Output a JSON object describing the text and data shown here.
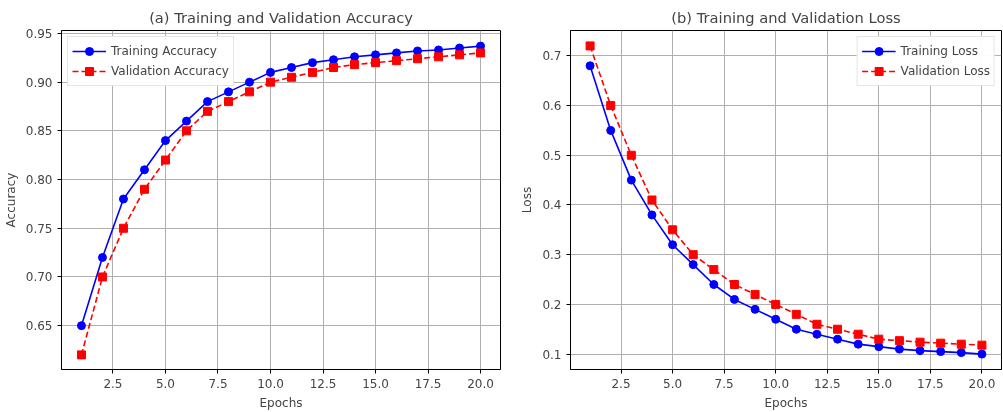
{
  "chart_data": [
    {
      "type": "line",
      "title": "(a) Training and Validation Accuracy",
      "xlabel": "Epochs",
      "ylabel": "Accuracy",
      "x": [
        1,
        2,
        3,
        4,
        5,
        6,
        7,
        8,
        9,
        10,
        11,
        12,
        13,
        14,
        15,
        16,
        17,
        18,
        19,
        20
      ],
      "series": [
        {
          "name": "Training Accuracy",
          "color": "#0000ff",
          "marker": "circle",
          "line_style": "solid",
          "values": [
            0.65,
            0.72,
            0.78,
            0.81,
            0.84,
            0.86,
            0.88,
            0.89,
            0.9,
            0.91,
            0.915,
            0.92,
            0.923,
            0.926,
            0.928,
            0.93,
            0.932,
            0.933,
            0.935,
            0.937
          ]
        },
        {
          "name": "Validation Accuracy",
          "color": "#ff0000",
          "marker": "square",
          "line_style": "dashed",
          "values": [
            0.62,
            0.7,
            0.75,
            0.79,
            0.82,
            0.85,
            0.87,
            0.88,
            0.89,
            0.9,
            0.905,
            0.91,
            0.915,
            0.918,
            0.92,
            0.922,
            0.924,
            0.926,
            0.928,
            0.93
          ]
        }
      ],
      "xlim": [
        0.05,
        20.95
      ],
      "ylim": [
        0.605,
        0.953
      ],
      "xticks": [
        2.5,
        {
          "value": 5,
          "label": "5.0"
        },
        7.5,
        {
          "value": 10,
          "label": "10.0"
        },
        12.5,
        {
          "value": 15,
          "label": "15.0"
        },
        17.5,
        {
          "value": 20,
          "label": "20.0"
        }
      ],
      "yticks": [
        0.65,
        {
          "value": 0.7,
          "label": "0.70"
        },
        0.75,
        {
          "value": 0.8,
          "label": "0.80"
        },
        0.85,
        {
          "value": 0.9,
          "label": "0.90"
        },
        0.95
      ],
      "grid": true,
      "legend": "top left"
    },
    {
      "type": "line",
      "title": "(b) Training and Validation Loss",
      "xlabel": "Epochs",
      "ylabel": "Loss",
      "x": [
        1,
        2,
        3,
        4,
        5,
        6,
        7,
        8,
        9,
        10,
        11,
        12,
        13,
        14,
        15,
        16,
        17,
        18,
        19,
        20
      ],
      "series": [
        {
          "name": "Training Loss",
          "color": "#0000ff",
          "marker": "circle",
          "line_style": "solid",
          "values": [
            0.68,
            0.55,
            0.45,
            0.38,
            0.32,
            0.28,
            0.24,
            0.21,
            0.19,
            0.17,
            0.15,
            0.14,
            0.13,
            0.12,
            0.115,
            0.11,
            0.107,
            0.105,
            0.103,
            0.1
          ]
        },
        {
          "name": "Validation Loss",
          "color": "#ff0000",
          "marker": "square",
          "line_style": "dashed",
          "values": [
            0.72,
            0.6,
            0.5,
            0.41,
            0.35,
            0.3,
            0.27,
            0.24,
            0.22,
            0.2,
            0.18,
            0.16,
            0.15,
            0.14,
            0.13,
            0.127,
            0.124,
            0.122,
            0.12,
            0.118
          ]
        }
      ],
      "xlim": [
        0.05,
        20.95
      ],
      "ylim": [
        0.069,
        0.751
      ],
      "xticks": [
        2.5,
        {
          "value": 5,
          "label": "5.0"
        },
        7.5,
        {
          "value": 10,
          "label": "10.0"
        },
        12.5,
        {
          "value": 15,
          "label": "15.0"
        },
        17.5,
        {
          "value": 20,
          "label": "20.0"
        }
      ],
      "yticks": [
        0.1,
        0.2,
        0.3,
        0.4,
        0.5,
        0.6,
        0.7
      ],
      "grid": true,
      "legend": "top right"
    }
  ]
}
